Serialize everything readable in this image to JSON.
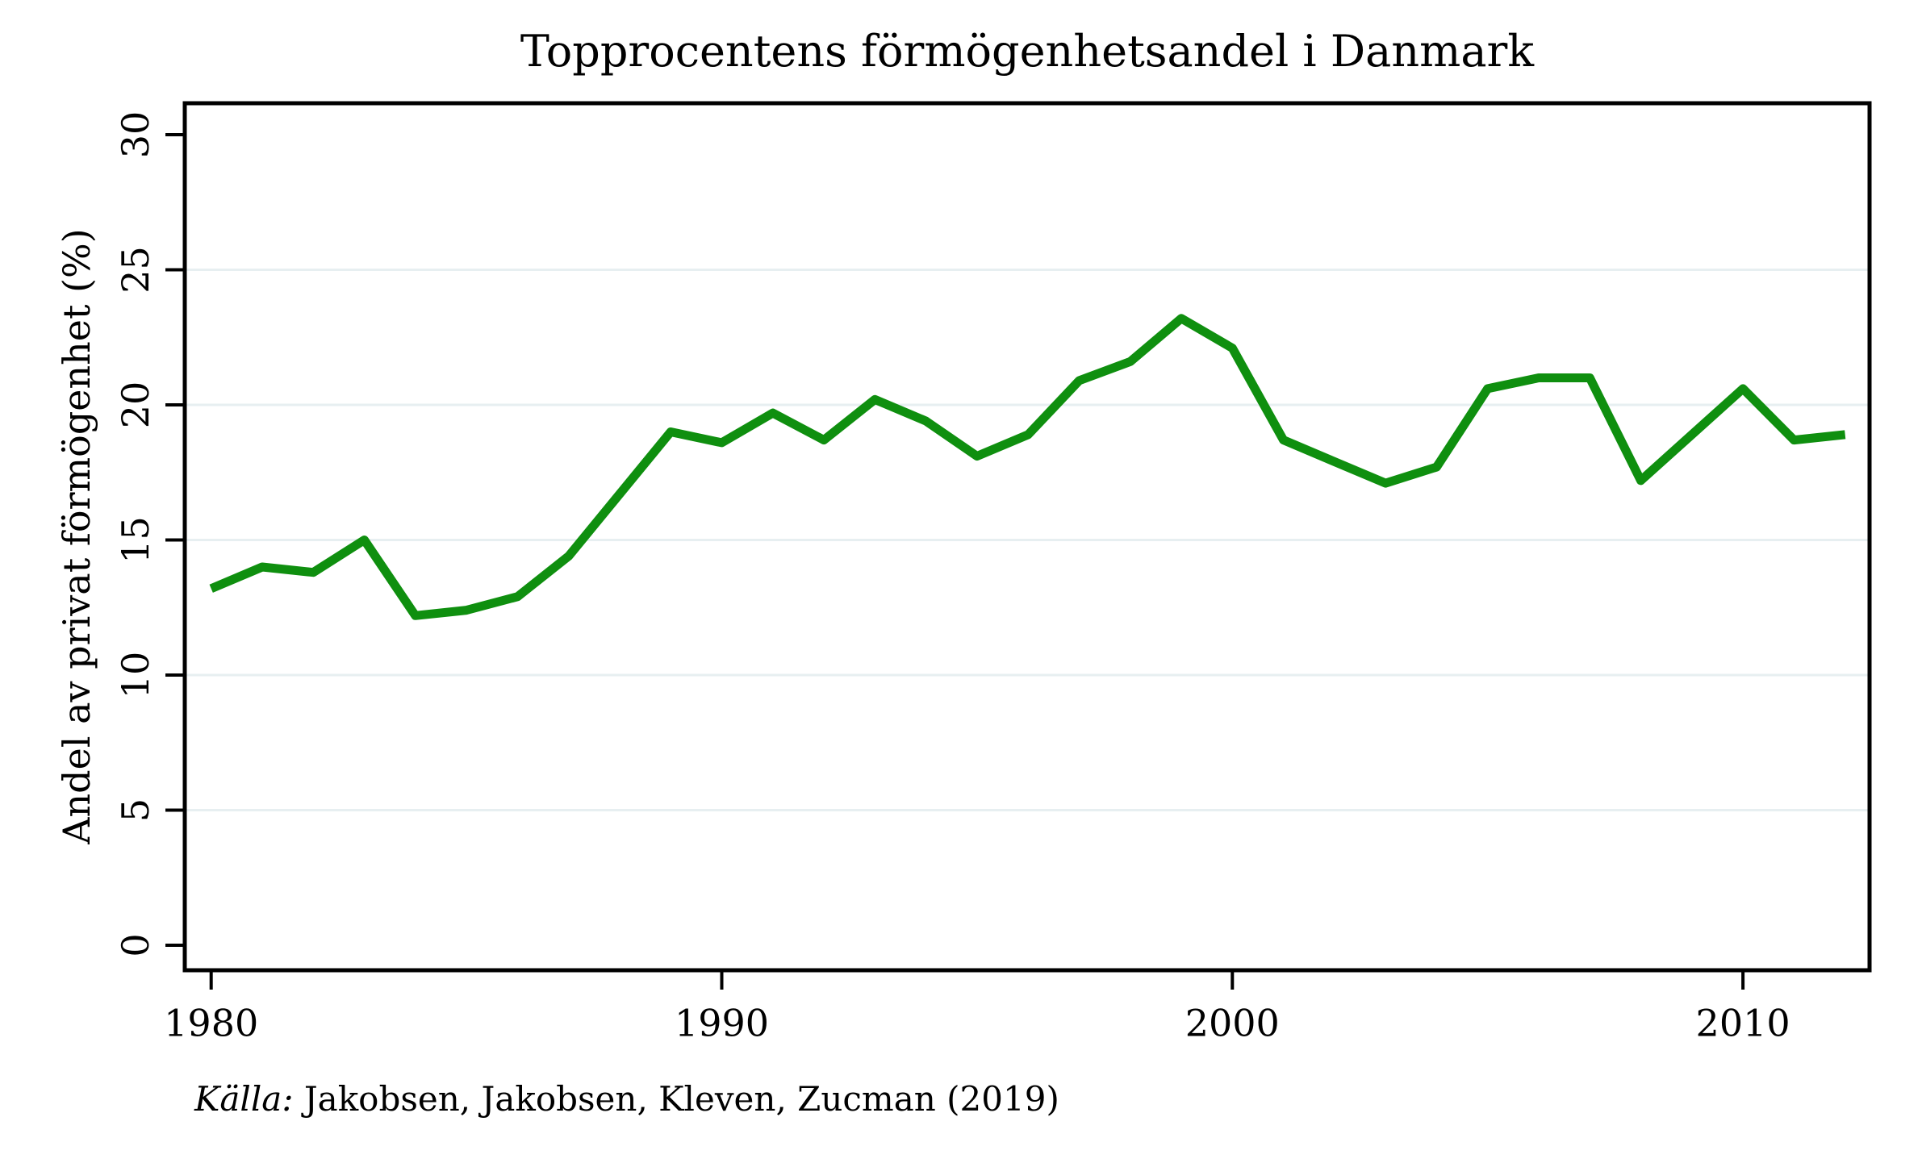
{
  "chart_data": {
    "type": "line",
    "title": "Topprocentens förmögenhetsandel i Danmark",
    "ylabel": "Andel av privat förmögenhet (%)",
    "xlabel": "",
    "source_note": {
      "label": "Källa:",
      "text": " Jakobsen, Jakobsen, Kleven, Zucman (2019)"
    },
    "x": [
      1980,
      1981,
      1982,
      1983,
      1984,
      1985,
      1986,
      1987,
      1988,
      1989,
      1990,
      1991,
      1992,
      1993,
      1994,
      1995,
      1996,
      1997,
      1998,
      1999,
      2000,
      2001,
      2002,
      2003,
      2004,
      2005,
      2006,
      2007,
      2008,
      2009,
      2010,
      2011,
      2012
    ],
    "series": [
      {
        "name": "Topprocentens förmögenhetsandel",
        "values": [
          13.2,
          14.0,
          13.8,
          15.0,
          12.2,
          12.4,
          12.9,
          14.4,
          16.7,
          19.0,
          18.6,
          19.7,
          18.7,
          20.2,
          19.4,
          18.1,
          18.9,
          20.9,
          21.6,
          23.2,
          22.1,
          18.7,
          17.9,
          17.1,
          17.7,
          20.6,
          21.0,
          21.0,
          17.2,
          18.9,
          20.6,
          18.7,
          18.9
        ]
      }
    ],
    "ylim": [
      0,
      30
    ],
    "yticks": [
      0,
      5,
      10,
      15,
      20,
      25,
      30
    ],
    "xticks": [
      1980,
      1990,
      2000,
      2010
    ],
    "gridline_values": [
      5,
      10,
      15,
      20,
      25
    ],
    "grid": true,
    "legend_position": "none",
    "ytick_label_rotation_deg": 90,
    "colors": {
      "line": "#0f8f0f",
      "grid": "#e7eff1",
      "axis": "#000000",
      "background": "#ffffff",
      "text": "#000000"
    }
  }
}
